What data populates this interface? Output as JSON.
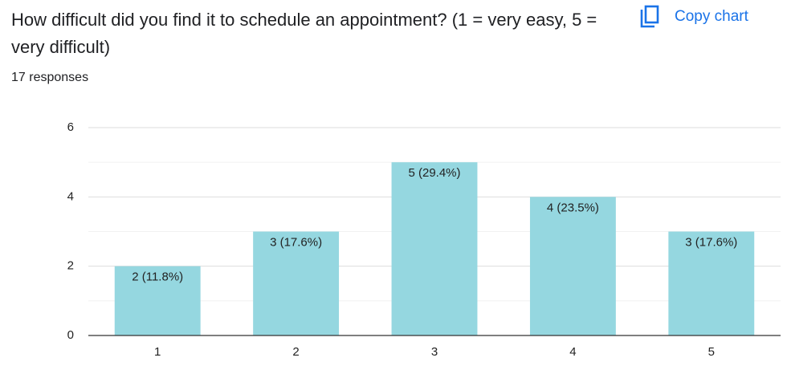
{
  "copy_button": "Copy chart",
  "chart_data": {
    "type": "bar",
    "title": "How difficult did you find it to schedule an appointment? (1 = very easy, 5 = very difficult)",
    "subtitle": "17 responses",
    "categories": [
      "1",
      "2",
      "3",
      "4",
      "5"
    ],
    "values": [
      2,
      3,
      5,
      4,
      3
    ],
    "value_labels": [
      "2 (11.8%)",
      "3 (17.6%)",
      "5 (29.4%)",
      "4 (23.5%)",
      "3 (17.6%)"
    ],
    "color": "#95d7e0",
    "ylim": [
      0,
      6
    ],
    "yticks": [
      0,
      2,
      4,
      6
    ],
    "minor_yticks": [
      1,
      3,
      5
    ],
    "grid": true
  }
}
